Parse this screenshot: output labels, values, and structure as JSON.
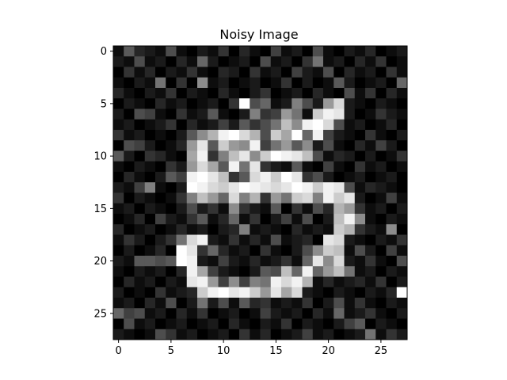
{
  "chart_data": {
    "type": "heatmap",
    "title": "Noisy Image",
    "xlabel": "",
    "ylabel": "",
    "colormap": "gray",
    "vmin": 0,
    "vmax": 1,
    "grid": false,
    "xlim": [
      -0.5,
      27.5
    ],
    "ylim": [
      27.5,
      -0.5
    ],
    "x_ticks": [
      0,
      5,
      10,
      15,
      20,
      25
    ],
    "y_ticks": [
      0,
      5,
      10,
      15,
      20,
      25
    ],
    "x_tick_labels": [
      "0",
      "5",
      "10",
      "15",
      "20",
      "25"
    ],
    "y_tick_labels": [
      "0",
      "5",
      "10",
      "15",
      "20",
      "25"
    ],
    "values": [
      [
        0.05,
        0.35,
        0.15,
        0.1,
        0.05,
        0.3,
        0.05,
        0.0,
        0.1,
        0.05,
        0.2,
        0.0,
        0.15,
        0.05,
        0.0,
        0.25,
        0.05,
        0.1,
        0.0,
        0.3,
        0.05,
        0.0,
        0.1,
        0.05,
        0.15,
        0.0,
        0.05,
        0.1
      ],
      [
        0.1,
        0.05,
        0.3,
        0.05,
        0.1,
        0.0,
        0.15,
        0.05,
        0.4,
        0.1,
        0.0,
        0.05,
        0.1,
        0.0,
        0.3,
        0.05,
        0.1,
        0.0,
        0.2,
        0.45,
        0.05,
        0.1,
        0.0,
        0.15,
        0.05,
        0.2,
        0.0,
        0.05
      ],
      [
        0.0,
        0.2,
        0.05,
        0.15,
        0.0,
        0.1,
        0.05,
        0.2,
        0.05,
        0.0,
        0.15,
        0.1,
        0.0,
        0.2,
        0.05,
        0.1,
        0.0,
        0.25,
        0.1,
        0.05,
        0.3,
        0.0,
        0.15,
        0.05,
        0.1,
        0.0,
        0.2,
        0.05
      ],
      [
        0.05,
        0.0,
        0.1,
        0.05,
        0.45,
        0.0,
        0.2,
        0.0,
        0.55,
        0.05,
        0.1,
        0.0,
        0.05,
        0.1,
        0.0,
        0.05,
        0.2,
        0.0,
        0.1,
        0.0,
        0.05,
        0.35,
        0.1,
        0.0,
        0.05,
        0.1,
        0.0,
        0.4
      ],
      [
        0.15,
        0.05,
        0.0,
        0.1,
        0.05,
        0.2,
        0.0,
        0.1,
        0.05,
        0.0,
        0.15,
        0.05,
        0.0,
        0.1,
        0.2,
        0.0,
        0.05,
        0.1,
        0.0,
        0.15,
        0.05,
        0.0,
        0.3,
        0.05,
        0.2,
        0.0,
        0.15,
        0.05
      ],
      [
        0.0,
        0.1,
        0.05,
        0.0,
        0.15,
        0.05,
        0.1,
        0.0,
        0.05,
        0.1,
        0.0,
        0.2,
        1.0,
        0.3,
        0.4,
        0.05,
        0.1,
        0.5,
        0.3,
        0.1,
        0.6,
        0.85,
        0.1,
        0.05,
        0.0,
        0.1,
        0.05,
        0.0
      ],
      [
        0.1,
        0.0,
        0.3,
        0.25,
        0.05,
        0.0,
        0.2,
        0.05,
        0.1,
        0.35,
        0.05,
        0.0,
        0.1,
        0.5,
        0.2,
        0.25,
        0.6,
        0.45,
        0.05,
        0.8,
        0.95,
        0.9,
        0.1,
        0.0,
        0.05,
        0.2,
        0.1,
        0.05
      ],
      [
        0.05,
        0.1,
        0.0,
        0.05,
        0.1,
        0.2,
        0.0,
        0.15,
        0.05,
        0.1,
        0.25,
        0.1,
        0.35,
        0.2,
        0.3,
        0.45,
        0.75,
        0.55,
        0.95,
        1.0,
        0.85,
        0.3,
        0.05,
        0.1,
        0.0,
        0.05,
        0.15,
        0.0
      ],
      [
        0.2,
        0.05,
        0.1,
        0.0,
        0.05,
        0.0,
        0.1,
        0.35,
        0.55,
        0.7,
        0.95,
        1.0,
        0.85,
        0.7,
        0.3,
        0.8,
        0.65,
        1.0,
        0.4,
        0.95,
        0.25,
        0.1,
        0.05,
        0.0,
        0.2,
        0.05,
        0.0,
        0.1
      ],
      [
        0.0,
        0.3,
        0.25,
        0.1,
        0.0,
        0.05,
        0.15,
        0.6,
        0.9,
        0.35,
        0.8,
        0.6,
        0.55,
        0.95,
        0.25,
        0.45,
        0.6,
        0.35,
        0.55,
        0.1,
        0.3,
        0.05,
        0.0,
        0.15,
        0.05,
        0.25,
        0.1,
        0.0
      ],
      [
        0.35,
        0.1,
        0.0,
        0.2,
        0.15,
        0.05,
        0.0,
        0.65,
        0.95,
        0.2,
        0.5,
        0.75,
        0.9,
        0.55,
        0.8,
        1.0,
        0.95,
        0.9,
        0.75,
        0.3,
        0.05,
        0.15,
        0.1,
        0.0,
        0.1,
        0.0,
        0.05,
        0.2
      ],
      [
        0.05,
        0.0,
        0.1,
        0.05,
        0.0,
        0.2,
        0.1,
        0.6,
        0.85,
        0.65,
        0.35,
        0.95,
        0.45,
        0.9,
        0.2,
        0.1,
        0.05,
        0.35,
        0.05,
        0.0,
        0.25,
        0.05,
        0.0,
        0.2,
        0.05,
        0.1,
        0.0,
        0.05
      ],
      [
        0.0,
        0.15,
        0.05,
        0.0,
        0.1,
        0.35,
        0.25,
        0.95,
        1.0,
        0.9,
        0.75,
        0.2,
        0.35,
        0.85,
        0.95,
        0.8,
        1.0,
        0.9,
        0.2,
        0.3,
        0.1,
        0.0,
        0.05,
        0.1,
        0.0,
        0.05,
        0.1,
        0.0
      ],
      [
        0.1,
        0.05,
        0.25,
        0.5,
        0.05,
        0.0,
        0.1,
        1.0,
        0.95,
        0.85,
        0.8,
        0.9,
        1.0,
        0.95,
        0.9,
        0.85,
        0.9,
        1.0,
        0.95,
        0.8,
        0.95,
        0.9,
        0.3,
        0.05,
        0.15,
        0.1,
        0.05,
        0.0
      ],
      [
        0.2,
        0.0,
        0.1,
        0.05,
        0.0,
        0.05,
        0.2,
        0.5,
        0.75,
        0.6,
        0.4,
        0.85,
        0.5,
        0.7,
        0.2,
        0.6,
        0.45,
        0.8,
        0.85,
        0.5,
        0.95,
        0.8,
        0.9,
        0.1,
        0.0,
        0.05,
        0.25,
        0.05
      ],
      [
        0.05,
        0.1,
        0.0,
        0.1,
        0.05,
        0.0,
        0.1,
        0.3,
        0.1,
        0.2,
        0.05,
        0.55,
        0.2,
        0.1,
        0.05,
        0.35,
        0.0,
        0.2,
        0.05,
        0.3,
        0.15,
        0.7,
        0.6,
        0.2,
        0.05,
        0.1,
        0.0,
        0.1
      ],
      [
        0.0,
        0.05,
        0.15,
        0.0,
        0.25,
        0.1,
        0.05,
        0.2,
        0.35,
        0.05,
        0.15,
        0.4,
        0.05,
        0.2,
        0.0,
        0.1,
        0.25,
        0.05,
        0.3,
        0.0,
        0.1,
        0.75,
        0.95,
        0.55,
        0.05,
        0.0,
        0.1,
        0.05
      ],
      [
        0.15,
        0.0,
        0.05,
        0.1,
        0.0,
        0.05,
        0.15,
        0.05,
        0.1,
        0.0,
        0.1,
        0.15,
        0.5,
        0.05,
        0.1,
        0.05,
        0.0,
        0.15,
        0.05,
        0.1,
        0.05,
        0.8,
        0.7,
        0.2,
        0.1,
        0.05,
        0.55,
        0.0
      ],
      [
        0.05,
        0.2,
        0.1,
        0.0,
        0.1,
        0.2,
        0.45,
        0.85,
        0.95,
        0.1,
        0.05,
        0.2,
        0.05,
        0.15,
        0.05,
        0.3,
        0.05,
        0.1,
        0.15,
        0.0,
        0.9,
        0.85,
        0.1,
        0.05,
        0.0,
        0.1,
        0.05,
        0.2
      ],
      [
        0.0,
        0.1,
        0.0,
        0.05,
        0.15,
        0.0,
        1.0,
        0.9,
        0.2,
        0.4,
        0.15,
        0.05,
        0.1,
        0.0,
        0.2,
        0.05,
        0.0,
        0.1,
        0.3,
        0.55,
        0.8,
        0.75,
        0.05,
        0.3,
        0.1,
        0.0,
        0.25,
        0.05
      ],
      [
        0.1,
        0.05,
        0.35,
        0.35,
        0.3,
        0.35,
        1.0,
        0.95,
        0.1,
        0.05,
        0.25,
        0.1,
        0.05,
        0.15,
        0.05,
        0.1,
        0.2,
        0.05,
        0.4,
        0.9,
        0.55,
        0.85,
        0.1,
        0.05,
        0.2,
        0.05,
        0.0,
        0.3
      ],
      [
        0.05,
        0.0,
        0.1,
        0.05,
        0.1,
        0.0,
        0.15,
        0.95,
        0.65,
        0.25,
        0.1,
        0.05,
        0.0,
        0.1,
        0.35,
        0.3,
        0.75,
        0.4,
        0.95,
        0.4,
        0.6,
        0.75,
        0.45,
        0.05,
        0.1,
        0.0,
        0.1,
        0.05
      ],
      [
        0.0,
        0.15,
        0.05,
        0.1,
        0.0,
        0.1,
        0.05,
        0.9,
        0.95,
        0.6,
        0.25,
        0.55,
        0.25,
        0.5,
        0.45,
        0.95,
        0.85,
        0.95,
        0.7,
        0.05,
        0.15,
        0.05,
        0.1,
        0.15,
        0.05,
        0.2,
        0.0,
        0.1
      ],
      [
        0.1,
        0.0,
        0.05,
        0.0,
        0.2,
        0.05,
        0.1,
        0.15,
        0.8,
        0.95,
        1.0,
        0.9,
        0.95,
        0.8,
        0.6,
        0.9,
        0.65,
        0.85,
        0.1,
        0.05,
        0.0,
        0.1,
        0.05,
        0.0,
        0.1,
        0.05,
        0.15,
        1.0
      ],
      [
        0.05,
        0.1,
        0.0,
        0.15,
        0.05,
        0.3,
        0.0,
        0.1,
        0.45,
        0.1,
        0.3,
        0.05,
        0.35,
        0.15,
        0.2,
        0.05,
        0.1,
        0.05,
        0.2,
        0.0,
        0.1,
        0.3,
        0.05,
        0.2,
        0.05,
        0.0,
        0.1,
        0.05
      ],
      [
        0.4,
        0.25,
        0.3,
        0.05,
        0.1,
        0.0,
        0.15,
        0.05,
        0.2,
        0.0,
        0.05,
        0.1,
        0.0,
        0.05,
        0.25,
        0.1,
        0.05,
        0.1,
        0.0,
        0.15,
        0.05,
        0.4,
        0.05,
        0.1,
        0.2,
        0.05,
        0.0,
        0.1
      ],
      [
        0.0,
        0.3,
        0.05,
        0.1,
        0.0,
        0.05,
        0.1,
        0.0,
        0.05,
        0.1,
        0.0,
        0.15,
        0.05,
        0.0,
        0.1,
        0.05,
        0.2,
        0.0,
        0.1,
        0.05,
        0.0,
        0.1,
        0.25,
        0.35,
        0.0,
        0.1,
        0.05,
        0.0
      ],
      [
        0.1,
        0.05,
        0.0,
        0.05,
        0.3,
        0.2,
        0.05,
        0.1,
        0.0,
        0.05,
        0.1,
        0.0,
        0.2,
        0.05,
        0.15,
        0.0,
        0.05,
        0.1,
        0.25,
        0.05,
        0.1,
        0.0,
        0.05,
        0.1,
        0.45,
        0.05,
        0.2,
        0.1
      ]
    ]
  }
}
